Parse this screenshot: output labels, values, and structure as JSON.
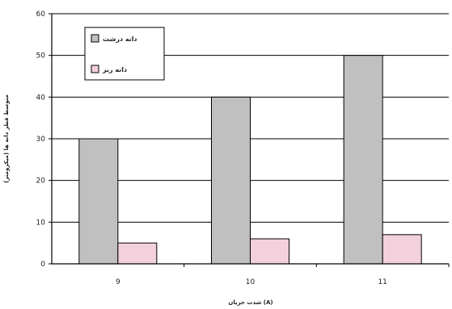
{
  "chart_data": {
    "type": "bar",
    "title": "",
    "xlabel": "شدت جريان (A)",
    "ylabel": "متوسط قطر دانه ها (ميكرومتر)",
    "categories": [
      "9",
      "10",
      "11"
    ],
    "series": [
      {
        "name": "دانه درشت",
        "values": [
          30,
          40,
          50
        ],
        "color": "#c0c0c0"
      },
      {
        "name": "دانه ريز",
        "values": [
          5,
          6,
          7
        ],
        "color": "#f2d0dc"
      }
    ],
    "ylim": [
      0,
      60
    ],
    "yticks": [
      0,
      10,
      20,
      30,
      40,
      50,
      60
    ],
    "grid": true,
    "legend_position": "top-left"
  }
}
